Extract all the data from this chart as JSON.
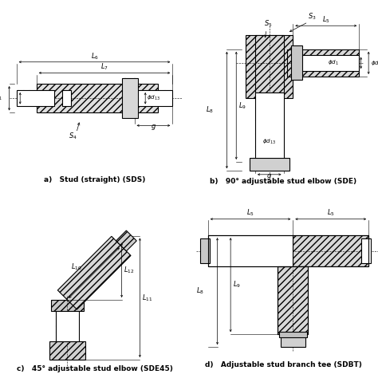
{
  "bg_color": "#ffffff",
  "line_color": "#000000",
  "captions": [
    "a)   Stud (straight) (SDS)",
    "b)   90° adjustable stud elbow (SDE)",
    "c)   45° adjustable stud elbow (SDE45)",
    "d)   Adjustable stud branch tee (SDBT)"
  ],
  "caption_fontsize": 6.5,
  "label_fontsize": 6.0
}
